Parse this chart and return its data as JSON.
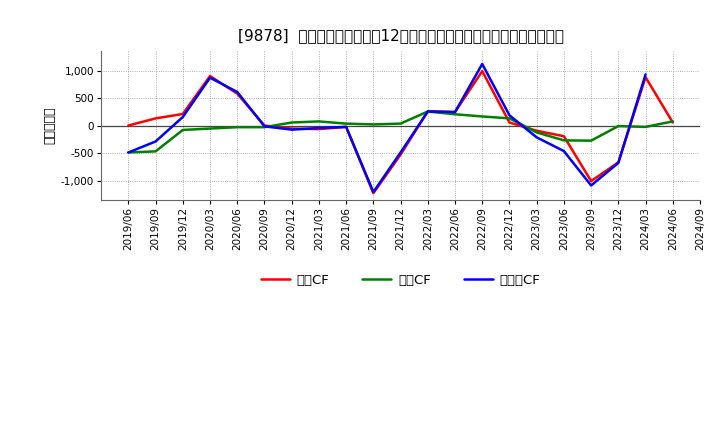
{
  "title": "[9878]  キャッシュフローの12か月移動合計の対前年同期増減額の推移",
  "ylabel": "（百万円）",
  "background_color": "#ffffff",
  "plot_bg_color": "#ffffff",
  "grid_color": "#999999",
  "ylim": [
    -1350,
    1350
  ],
  "yticks": [
    -1000,
    -500,
    0,
    500,
    1000
  ],
  "dates": [
    "2019/06",
    "2019/09",
    "2019/12",
    "2020/03",
    "2020/06",
    "2020/09",
    "2020/12",
    "2021/03",
    "2021/06",
    "2021/09",
    "2021/12",
    "2022/03",
    "2022/06",
    "2022/09",
    "2022/12",
    "2023/03",
    "2023/06",
    "2023/09",
    "2023/12",
    "2024/03",
    "2024/06",
    "2024/09"
  ],
  "operating_cf": [
    0,
    130,
    210,
    900,
    580,
    0,
    -55,
    -65,
    -25,
    -1230,
    -530,
    260,
    245,
    990,
    55,
    -95,
    -195,
    -1010,
    -670,
    880,
    55,
    null
  ],
  "investing_cf": [
    -490,
    -470,
    -80,
    -55,
    -30,
    -30,
    55,
    75,
    35,
    20,
    35,
    255,
    205,
    165,
    130,
    -125,
    -270,
    -275,
    -10,
    -25,
    75,
    null
  ],
  "free_cf": [
    -490,
    -290,
    155,
    870,
    610,
    -15,
    -75,
    -45,
    -25,
    -1210,
    -490,
    255,
    245,
    1120,
    185,
    -215,
    -465,
    -1090,
    -680,
    930,
    null,
    null
  ],
  "legend_labels": [
    "営業CF",
    "投資CF",
    "フリーCF"
  ],
  "line_colors": [
    "#ff0000",
    "#008000",
    "#0000ff"
  ],
  "line_width": 1.8,
  "title_fontsize": 11,
  "label_fontsize": 9,
  "tick_fontsize": 7.5
}
